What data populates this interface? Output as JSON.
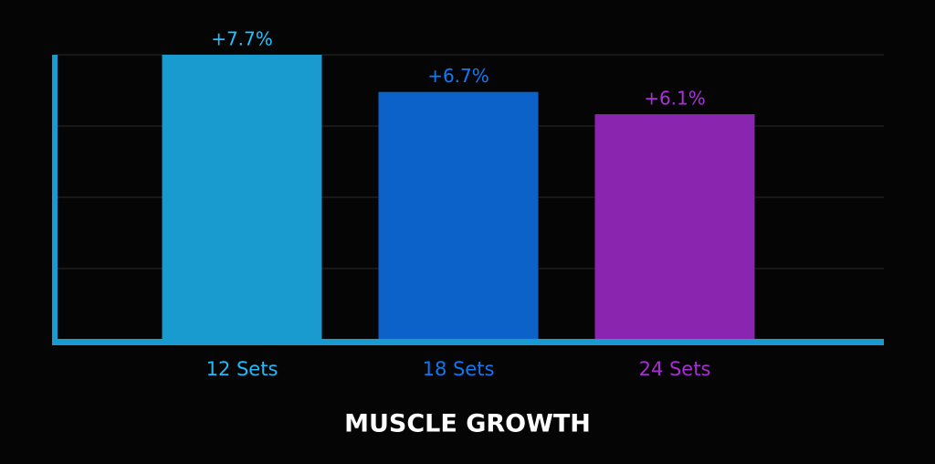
{
  "chart_data": {
    "type": "bar",
    "title": "MUSCLE GROWTH",
    "categories": [
      "12 Sets",
      "18 Sets",
      "24 Sets"
    ],
    "values": [
      7.7,
      6.7,
      6.1
    ],
    "value_labels": [
      "+7.7%",
      "+6.7%",
      "+6.1%"
    ],
    "colors": [
      "#1a9bd0",
      "#0d62c9",
      "#8a25b0"
    ],
    "ylim": [
      0,
      7.7
    ]
  }
}
